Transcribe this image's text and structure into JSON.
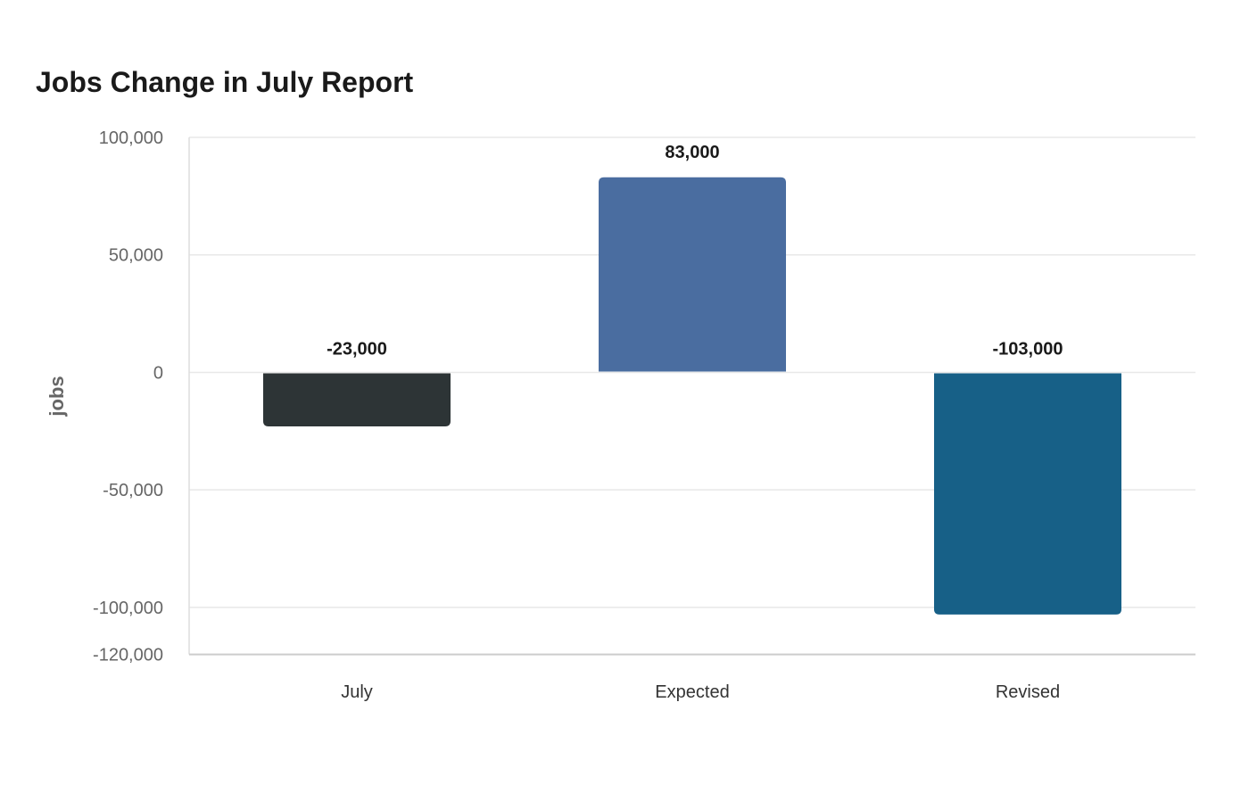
{
  "chart_data": {
    "type": "bar",
    "title": "Jobs Change in July Report",
    "xlabel": "",
    "ylabel": "jobs",
    "categories": [
      "July",
      "Expected",
      "Revised"
    ],
    "values": [
      -23000,
      83000,
      -103000
    ],
    "data_labels": [
      "-23,000",
      "83,000",
      "-103,000"
    ],
    "colors": [
      "#2d3436",
      "#4a6da0",
      "#176087"
    ],
    "ylim": [
      -120000,
      100000
    ],
    "yticks": [
      100000,
      50000,
      0,
      -50000,
      -100000,
      -120000
    ],
    "ytick_labels": [
      "100,000",
      "50,000",
      "0",
      "-50,000",
      "-100,000",
      "-120,000"
    ],
    "grid": true,
    "legend": "none"
  }
}
